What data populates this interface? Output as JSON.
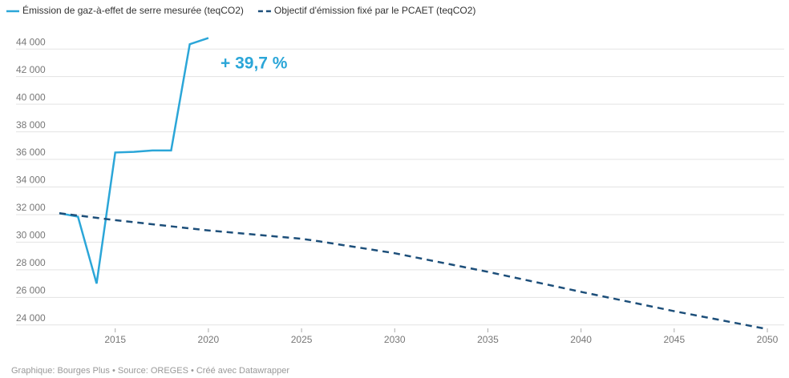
{
  "chart_data": {
    "type": "line",
    "series": [
      {
        "name": "Émission de gaz-à-effet de serre mesurée (teqCO2)",
        "color": "#2ba6d8",
        "dash": false,
        "x": [
          2012,
          2013,
          2014,
          2015,
          2016,
          2017,
          2018,
          2019,
          2020
        ],
        "values": [
          32100,
          31850,
          27000,
          36500,
          36550,
          36650,
          36650,
          44350,
          44800
        ]
      },
      {
        "name": "Objectif d'émission fixé par le PCAET (teqCO2)",
        "color": "#1d4f7a",
        "dash": true,
        "x": [
          2012,
          2015,
          2020,
          2025,
          2026,
          2030,
          2035,
          2040,
          2045,
          2050
        ],
        "values": [
          32100,
          31600,
          30850,
          30250,
          30050,
          29200,
          27850,
          26400,
          25000,
          23700
        ]
      }
    ],
    "annotation": "+ 39,7 %",
    "footer": "Graphique: Bourges Plus • Source: OREGES • Créé avec Datawrapper",
    "xlim": [
      2012,
      2050
    ],
    "xticks": [
      2015,
      2020,
      2025,
      2030,
      2035,
      2040,
      2045,
      2050
    ],
    "ylim": [
      23000,
      45000
    ],
    "yticks": [
      {
        "value": 24000,
        "label": "24 000"
      },
      {
        "value": 26000,
        "label": "26 000"
      },
      {
        "value": 28000,
        "label": "28 000"
      },
      {
        "value": 30000,
        "label": "30 000"
      },
      {
        "value": 32000,
        "label": "32 000"
      },
      {
        "value": 34000,
        "label": "34 000"
      },
      {
        "value": 36000,
        "label": "36 000"
      },
      {
        "value": 38000,
        "label": "38 000"
      },
      {
        "value": 40000,
        "label": "40 000"
      },
      {
        "value": 42000,
        "label": "42 000"
      },
      {
        "value": 44000,
        "label": "44 000"
      }
    ],
    "grid": true
  }
}
